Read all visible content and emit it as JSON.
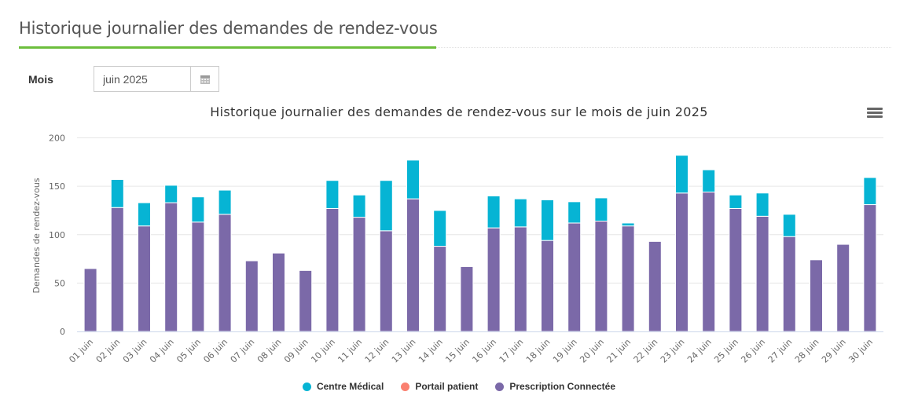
{
  "page": {
    "title": "Historique journalier des demandes de rendez-vous"
  },
  "filter": {
    "label": "Mois",
    "month_value": "juin 2025",
    "calendar_icon": "calendar-icon"
  },
  "chart_menu": {
    "icon": "hamburger-menu-icon"
  },
  "colors": {
    "accent_underline": "#6cbe3c",
    "centre_medical": "#06b4d4",
    "portail_patient": "#fa8070",
    "prescription_connectee": "#7b69a8"
  },
  "chart_data": {
    "type": "bar",
    "stacked": true,
    "title": "Historique journalier des demandes de rendez-vous sur le mois de juin 2025",
    "xlabel": "",
    "ylabel": "Demandes de rendez-vous",
    "ylim": [
      0,
      200
    ],
    "yticks": [
      0,
      50,
      100,
      150,
      200
    ],
    "grid": true,
    "legend_position": "bottom-center",
    "categories": [
      "01 juin",
      "02 juin",
      "03 juin",
      "04 juin",
      "05 juin",
      "06 juin",
      "07 juin",
      "08 juin",
      "09 juin",
      "10 juin",
      "11 juin",
      "12 juin",
      "13 juin",
      "14 juin",
      "15 juin",
      "16 juin",
      "17 juin",
      "18 juin",
      "19 juin",
      "20 juin",
      "21 juin",
      "22 juin",
      "23 juin",
      "24 juin",
      "25 juin",
      "26 juin",
      "27 juin",
      "28 juin",
      "29 juin",
      "30 juin"
    ],
    "series": [
      {
        "name": "Prescription Connectée",
        "color": "#7b69a8",
        "values": [
          65,
          128,
          109,
          133,
          113,
          121,
          73,
          81,
          63,
          127,
          118,
          104,
          137,
          88,
          67,
          107,
          108,
          94,
          112,
          114,
          109,
          93,
          143,
          144,
          127,
          119,
          98,
          74,
          90,
          131
        ]
      },
      {
        "name": "Portail patient",
        "color": "#fa8070",
        "values": [
          0,
          0,
          0,
          0,
          0,
          0,
          0,
          0,
          0,
          0,
          0,
          0,
          0,
          0,
          0,
          0,
          0,
          0,
          0,
          0,
          0,
          0,
          0,
          0,
          0,
          0,
          0,
          0,
          0,
          0
        ]
      },
      {
        "name": "Centre Médical",
        "color": "#06b4d4",
        "values": [
          0,
          29,
          24,
          18,
          26,
          25,
          0,
          0,
          0,
          29,
          23,
          52,
          40,
          37,
          0,
          33,
          29,
          42,
          22,
          24,
          3,
          0,
          39,
          23,
          14,
          24,
          23,
          0,
          0,
          28
        ]
      }
    ],
    "legend": [
      "Centre Médical",
      "Portail patient",
      "Prescription Connectée"
    ]
  }
}
